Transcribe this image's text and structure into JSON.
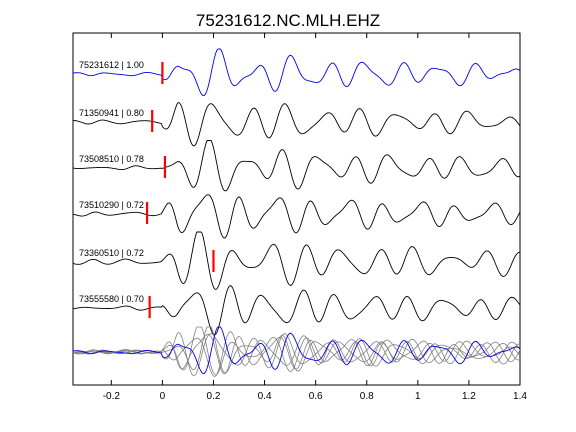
{
  "chart_data": {
    "type": "line",
    "title": "75231612.NC.MLH.EHZ",
    "xlabel": "",
    "ylabel": "",
    "xlim": [
      -0.35,
      1.4
    ],
    "x_ticks": [
      -0.2,
      0,
      0.2,
      0.4,
      0.6,
      0.8,
      1,
      1.2,
      1.4
    ],
    "x_tick_labels": [
      "-0.2",
      "0",
      "0.2",
      "0.4",
      "0.6",
      "0.8",
      "1",
      "1.2",
      "1.4"
    ],
    "grid": false,
    "legend": "none",
    "colors": {
      "reference": "#0000ee",
      "trace": "#000000",
      "stack": "#808080",
      "pick": "#ff0000"
    },
    "traces": [
      {
        "label": "75231612 | 1.00",
        "event_id": "75231612",
        "correlation": 1.0,
        "pick_time": 0.0,
        "color": "reference"
      },
      {
        "label": "71350941 | 0.80",
        "event_id": "71350941",
        "correlation": 0.8,
        "pick_time": -0.04,
        "color": "trace"
      },
      {
        "label": "73508510 | 0.78",
        "event_id": "73508510",
        "correlation": 0.78,
        "pick_time": 0.01,
        "color": "trace"
      },
      {
        "label": "73510290 | 0.72",
        "event_id": "73510290",
        "correlation": 0.72,
        "pick_time": -0.06,
        "color": "trace"
      },
      {
        "label": "73360510 | 0.72",
        "event_id": "73360510",
        "correlation": 0.72,
        "pick_time": 0.2,
        "color": "trace"
      },
      {
        "label": "73555580 | 0.70",
        "event_id": "73555580",
        "correlation": 0.7,
        "pick_time": -0.05,
        "color": "trace"
      }
    ],
    "overlay_row": {
      "components": "all traces superimposed",
      "highlight": "reference"
    }
  }
}
